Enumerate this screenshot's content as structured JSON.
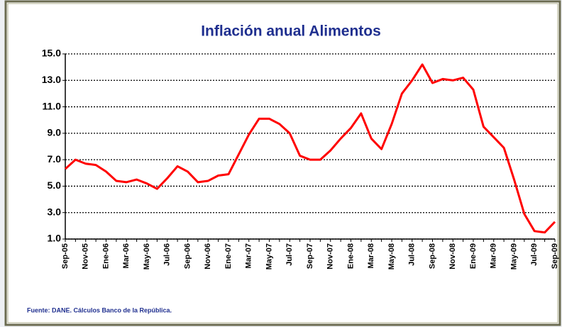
{
  "chart_data": {
    "type": "line",
    "title": "Inflación anual Alimentos",
    "source": "Fuente: DANE. Cálculos Banco de la República.",
    "categories": [
      "Sep-05",
      null,
      "Nov-05",
      null,
      "Ene-06",
      null,
      "Mar-06",
      null,
      "May-06",
      null,
      "Jul-06",
      null,
      "Sep-06",
      null,
      "Nov-06",
      null,
      "Ene-07",
      null,
      "Mar-07",
      null,
      "May-07",
      null,
      "Jul-07",
      null,
      "Sep-07",
      null,
      "Nov-07",
      null,
      "Ene-08",
      null,
      "Mar-08",
      null,
      "May-08",
      null,
      "Jul-08",
      null,
      "Sep-08",
      null,
      "Nov-08",
      null,
      "Ene-09",
      null,
      "Mar-09",
      null,
      "May-09",
      null,
      "Jul-09",
      null,
      "Sep-09"
    ],
    "values": [
      6.3,
      7.0,
      6.7,
      6.6,
      6.1,
      5.4,
      5.3,
      5.5,
      5.2,
      4.8,
      5.6,
      6.5,
      6.1,
      5.3,
      5.4,
      5.8,
      5.9,
      7.4,
      8.9,
      10.1,
      10.1,
      9.7,
      9.0,
      7.3,
      7.0,
      7.0,
      7.7,
      8.6,
      9.4,
      10.5,
      8.6,
      7.8,
      9.7,
      12.0,
      13.0,
      14.2,
      12.8,
      13.1,
      13.0,
      13.2,
      12.3,
      9.5,
      8.7,
      7.9,
      5.5,
      2.9,
      1.6,
      1.5,
      2.3
    ],
    "color": "#ff0000",
    "ylim": [
      1,
      15
    ],
    "yticks": [
      {
        "value": 1,
        "label": "1.0"
      },
      {
        "value": 3,
        "label": "3.0"
      },
      {
        "value": 5,
        "label": "5.0"
      },
      {
        "value": 7,
        "label": "7.0"
      },
      {
        "value": 9,
        "label": "9.0"
      },
      {
        "value": 11,
        "label": "11.0"
      },
      {
        "value": 13,
        "label": "13.0"
      },
      {
        "value": 15,
        "label": "15.0"
      }
    ],
    "grid": true
  }
}
